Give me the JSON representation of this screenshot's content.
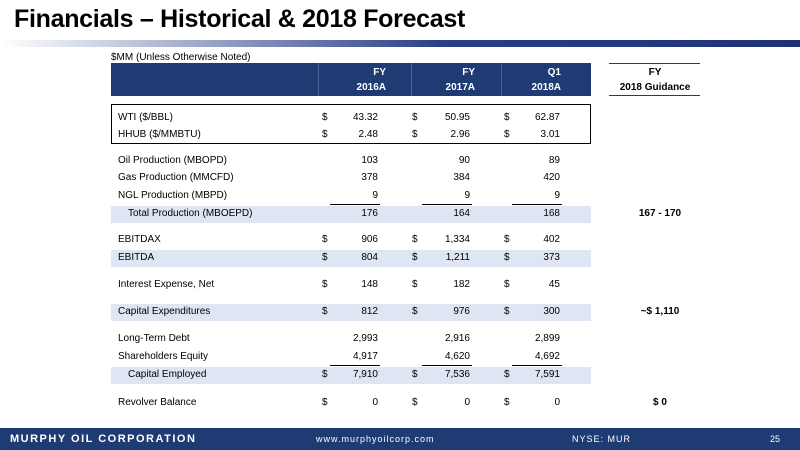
{
  "title": "Financials – Historical & 2018 Forecast",
  "units_note": "$MM (Unless Otherwise Noted)",
  "columns": [
    {
      "line1": "FY",
      "line2": "2016A"
    },
    {
      "line1": "FY",
      "line2": "2017A"
    },
    {
      "line1": "Q1",
      "line2": "2018A"
    }
  ],
  "guidance_header": {
    "line1": "FY",
    "line2": "2018 Guidance"
  },
  "rows": [
    {
      "label": "WTI ($/BBL)",
      "dollar": [
        "$",
        "$",
        "$"
      ],
      "values": [
        "43.32",
        "50.95",
        "62.87"
      ]
    },
    {
      "label": "HHUB ($/MMBTU)",
      "dollar": [
        "$",
        "$",
        "$"
      ],
      "values": [
        "2.48",
        "2.96",
        "3.01"
      ]
    },
    {
      "label": "Oil Production (MBOPD)",
      "values": [
        "103",
        "90",
        "89"
      ]
    },
    {
      "label": "Gas Production (MMCFD)",
      "values": [
        "378",
        "384",
        "420"
      ]
    },
    {
      "label": "NGL Production (MBPD)",
      "values": [
        "9",
        "9",
        "9"
      ]
    },
    {
      "label": "Total Production (MBOEPD)",
      "values": [
        "176",
        "164",
        "168"
      ],
      "guidance": "167 - 170"
    },
    {
      "label": "EBITDAX",
      "dollar": [
        "$",
        "$",
        "$"
      ],
      "values": [
        "906",
        "1,334",
        "402"
      ]
    },
    {
      "label": "EBITDA",
      "dollar": [
        "$",
        "$",
        "$"
      ],
      "values": [
        "804",
        "1,211",
        "373"
      ]
    },
    {
      "label": "Interest Expense, Net",
      "dollar": [
        "$",
        "$",
        "$"
      ],
      "values": [
        "148",
        "182",
        "45"
      ]
    },
    {
      "label": "Capital Expenditures",
      "dollar": [
        "$",
        "$",
        "$"
      ],
      "values": [
        "812",
        "976",
        "300"
      ],
      "guidance": "~$ 1,110"
    },
    {
      "label": "Long-Term Debt",
      "values": [
        "2,993",
        "2,916",
        "2,899"
      ]
    },
    {
      "label": "Shareholders Equity",
      "values": [
        "4,917",
        "4,620",
        "4,692"
      ]
    },
    {
      "label": "Capital Employed",
      "dollar": [
        "$",
        "$",
        "$"
      ],
      "values": [
        "7,910",
        "7,536",
        "7,591"
      ]
    },
    {
      "label": "Revolver Balance",
      "dollar": [
        "$",
        "$",
        "$"
      ],
      "values": [
        "0",
        "0",
        "0"
      ],
      "guidance": "$ 0"
    }
  ],
  "footer": {
    "company": "MURPHY OIL CORPORATION",
    "website": "www.murphyoilcorp.com",
    "ticker": "NYSE: MUR",
    "page": "25"
  },
  "colors": {
    "header_bg": "#1f3b73",
    "row_shade": "#dfe6f3"
  }
}
